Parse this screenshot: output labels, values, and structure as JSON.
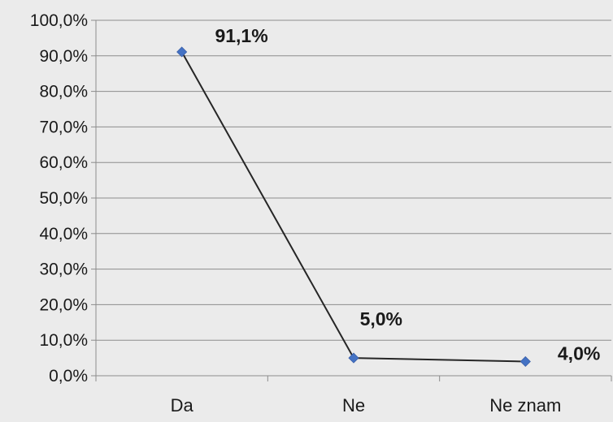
{
  "chart_data": {
    "type": "line",
    "categories": [
      "Da",
      "Ne",
      "Ne znam"
    ],
    "values": [
      91.1,
      5.0,
      4.0
    ],
    "data_labels": [
      "91,1%",
      "5,0%",
      "4,0%"
    ],
    "title": "",
    "xlabel": "",
    "ylabel": "",
    "ylim": [
      0,
      100
    ],
    "y_ticks": [
      {
        "value": 0,
        "label": "0,0%"
      },
      {
        "value": 10,
        "label": "10,0%"
      },
      {
        "value": 20,
        "label": "20,0%"
      },
      {
        "value": 30,
        "label": "30,0%"
      },
      {
        "value": 40,
        "label": "40,0%"
      },
      {
        "value": 50,
        "label": "50,0%"
      },
      {
        "value": 60,
        "label": "60,0%"
      },
      {
        "value": 70,
        "label": "70,0%"
      },
      {
        "value": 80,
        "label": "80,0%"
      },
      {
        "value": 90,
        "label": "90,0%"
      },
      {
        "value": 100,
        "label": "100,0%"
      }
    ],
    "grid": true,
    "legend": "none",
    "colors": {
      "background": "#ebebeb",
      "line": "#262626",
      "marker": "#4472c4",
      "grid": "#8c8c8c",
      "text": "#1a1a1a"
    }
  }
}
